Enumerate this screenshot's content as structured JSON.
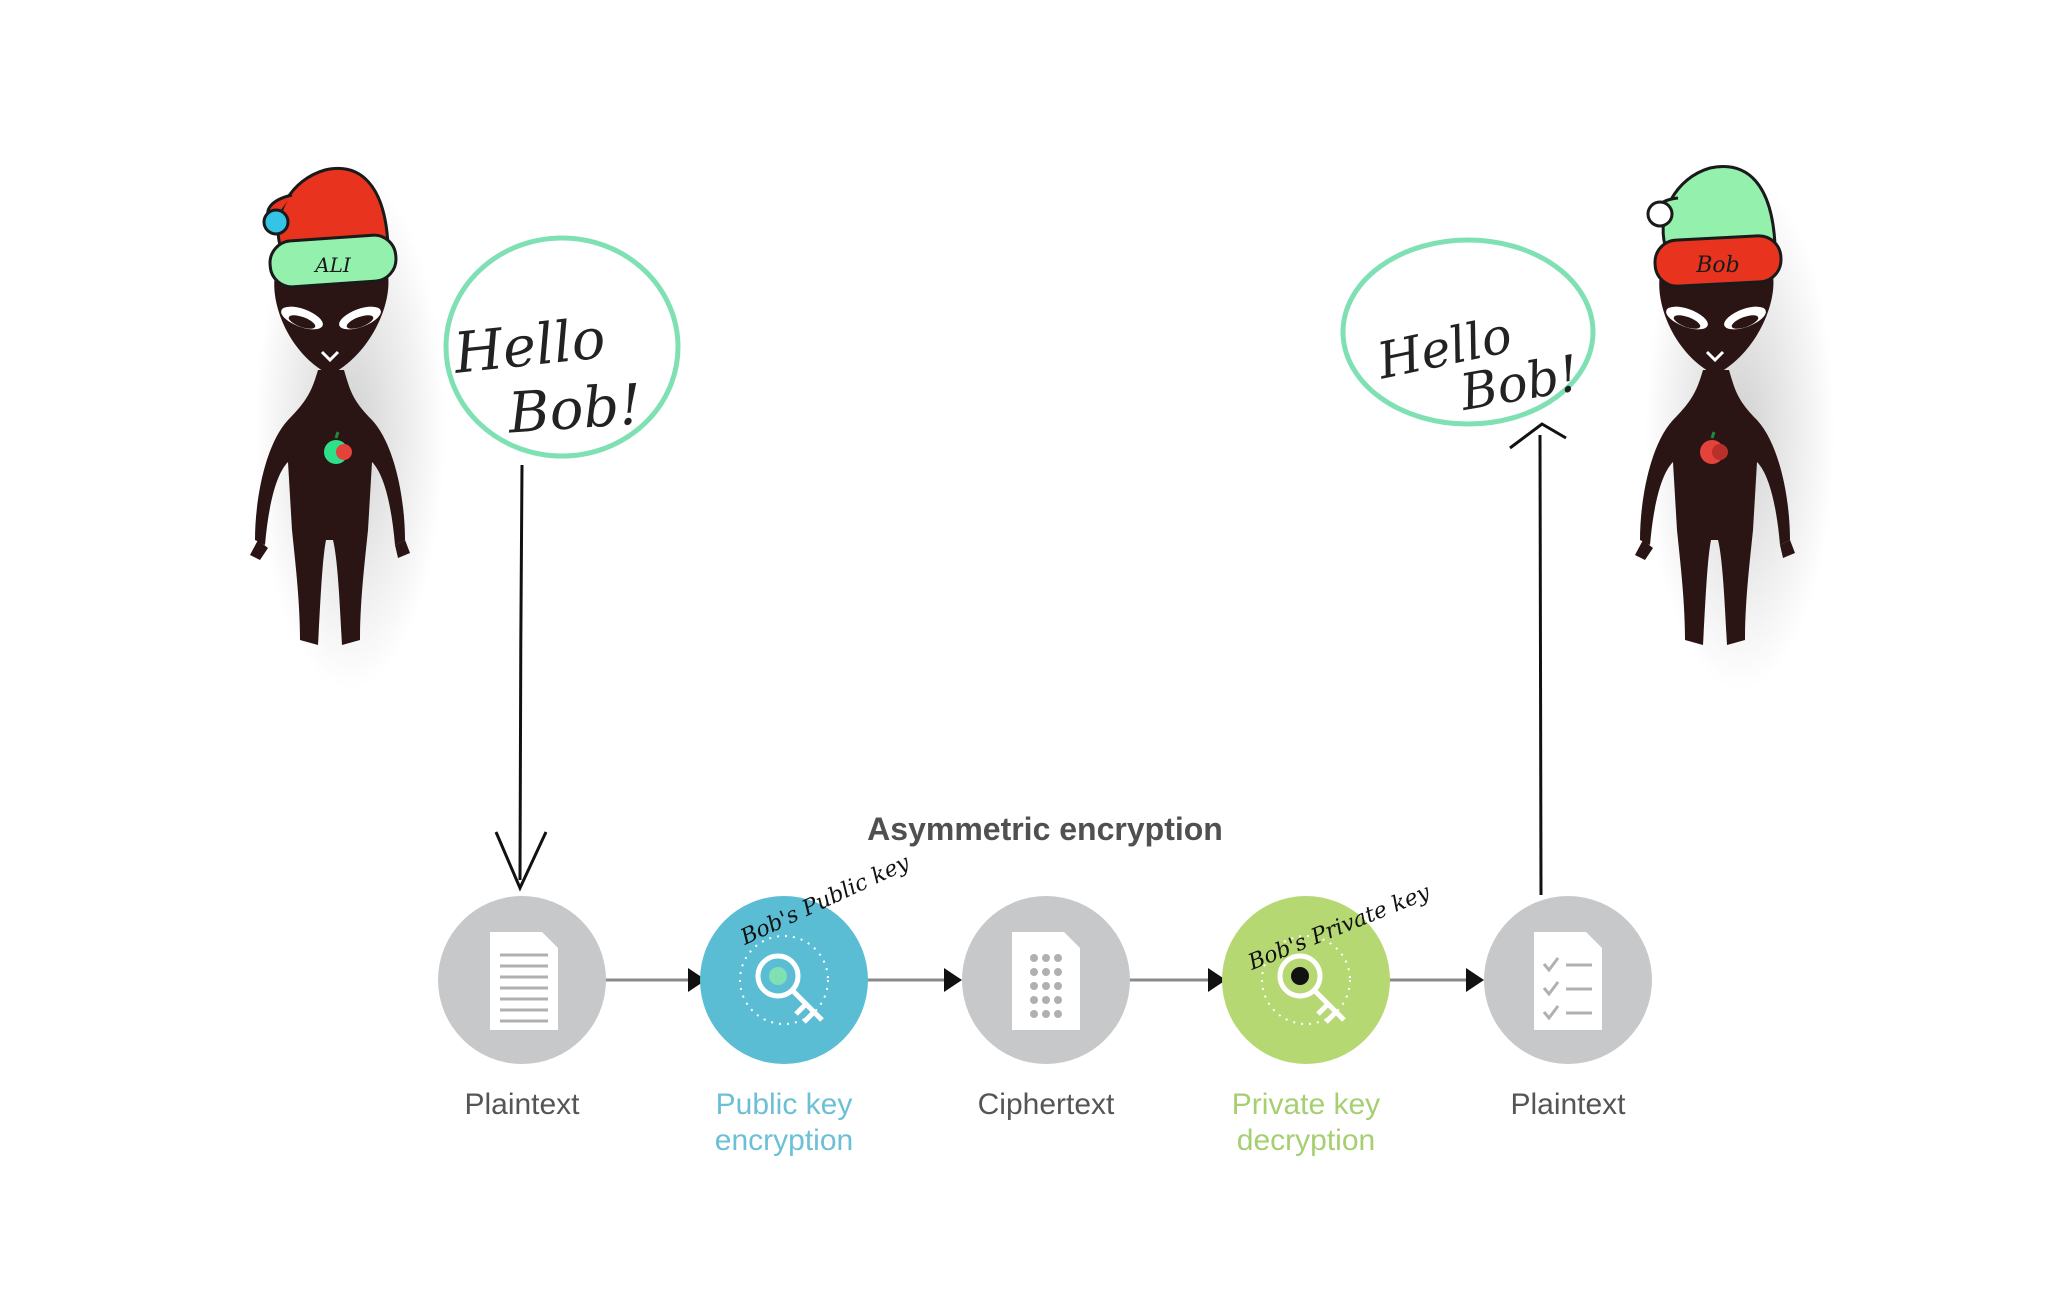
{
  "diagram": {
    "title": "Asymmetric encryption",
    "steps": [
      {
        "line1": "Plaintext",
        "line2": ""
      },
      {
        "line1": "Public key",
        "line2": "encryption"
      },
      {
        "line1": "Ciphertext",
        "line2": ""
      },
      {
        "line1": "Private key",
        "line2": "decryption"
      },
      {
        "line1": "Plaintext",
        "line2": ""
      }
    ],
    "key_badges": {
      "public": "Bob's Public key",
      "private": "Bob's Private key"
    }
  },
  "characters": {
    "sender": {
      "hat_label": "ALI",
      "bubble_line1": "Hello",
      "bubble_line2": "Bob!"
    },
    "receiver": {
      "hat_label": "Bob",
      "bubble_line1": "Hello",
      "bubble_line2": "Bob!"
    }
  },
  "colors": {
    "grey_circle": "#c7c8ca",
    "public_key_circle": "#5bbdd4",
    "private_key_circle": "#b5d873",
    "bubble_outline": "#7fe0b4",
    "alien_body": "#2a1414",
    "hat_red": "#e8341f",
    "hat_green": "#93f0ad"
  },
  "icons": [
    "document-icon",
    "key-icon",
    "cipher-document-icon",
    "key-icon",
    "checklist-document-icon"
  ]
}
